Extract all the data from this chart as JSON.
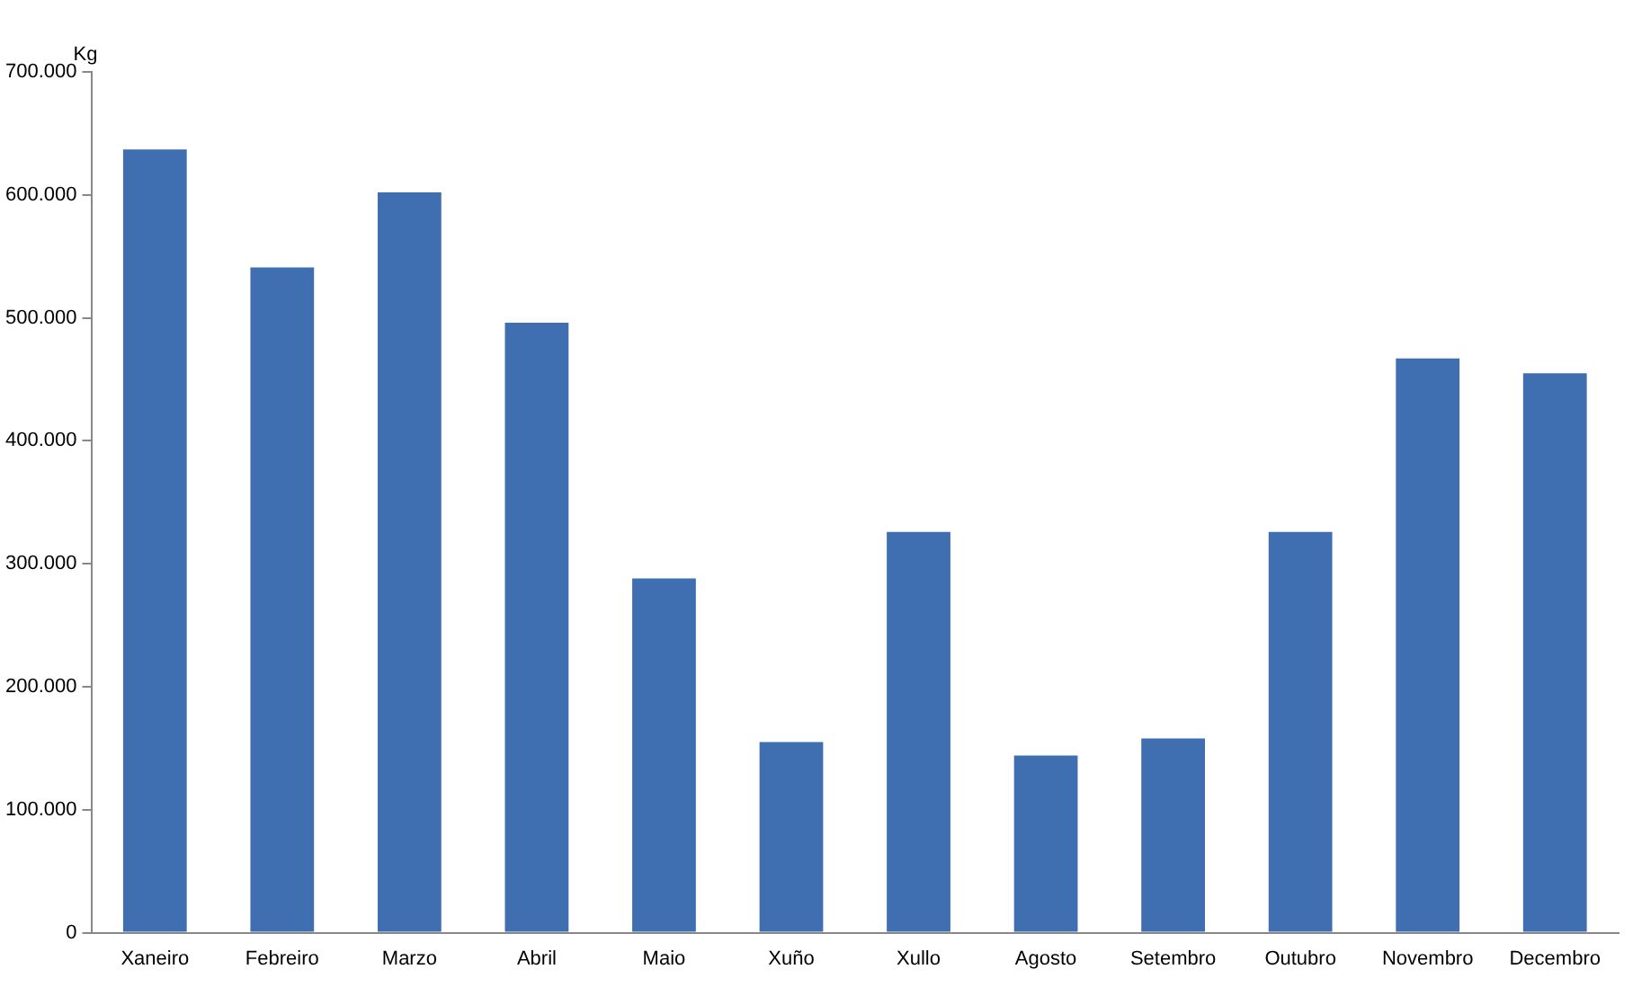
{
  "chart_data": {
    "type": "bar",
    "ylabel": "Kg",
    "categories": [
      "Xaneiro",
      "Febreiro",
      "Marzo",
      "Abril",
      "Maio",
      "Xuño",
      "Xullo",
      "Agosto",
      "Setembro",
      "Outubro",
      "Novembro",
      "Decembro"
    ],
    "values": [
      637000,
      541000,
      602000,
      496000,
      288000,
      155000,
      326000,
      144000,
      158000,
      326000,
      467000,
      455000
    ],
    "color": "#3f6fb0",
    "ylim": [
      0,
      700000
    ],
    "yticks": [
      {
        "value": 0,
        "label": "0"
      },
      {
        "value": 100000,
        "label": "100.000"
      },
      {
        "value": 200000,
        "label": "200.000"
      },
      {
        "value": 300000,
        "label": "300.000"
      },
      {
        "value": 400000,
        "label": "400.000"
      },
      {
        "value": 500000,
        "label": "500.000"
      },
      {
        "value": 600000,
        "label": "600.000"
      },
      {
        "value": 700000,
        "label": "700.000"
      }
    ],
    "grid": false,
    "legend": false
  }
}
